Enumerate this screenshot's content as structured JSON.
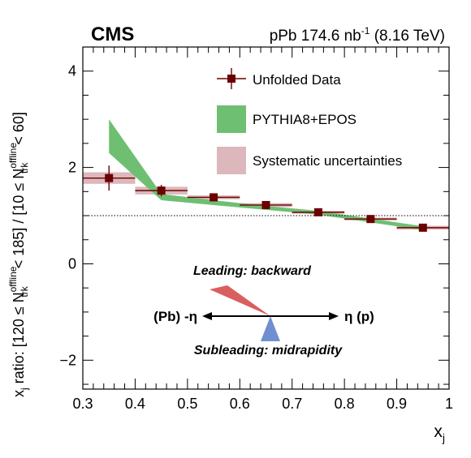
{
  "chart_data": {
    "type": "scatter",
    "experiment_label": "CMS",
    "lumi_text": "pPb 174.6 nb",
    "lumi_sup": "-1",
    "energy_text": "(8.16 TeV)",
    "xlabel_main": "x",
    "xlabel_sub": "j",
    "ylabel": {
      "p1": "x",
      "p1_sub": "j",
      "p2": " ratio: [120 ≤ N",
      "p3_sup": "offline",
      "p3_sub": "trk",
      "p4": " < 185] / [10 ≤ N",
      "p5_sup": "offline",
      "p5_sub": "trk",
      "p6": " < 60]"
    },
    "xlim": [
      0.3,
      1.0
    ],
    "ylim": [
      -2.6,
      4.5
    ],
    "x_ticks": [
      0.3,
      0.4,
      0.5,
      0.6,
      0.7,
      0.8,
      0.9,
      1.0
    ],
    "x_tick_labels": [
      "0.3",
      "0.4",
      "0.5",
      "0.6",
      "0.7",
      "0.8",
      "0.9",
      "1"
    ],
    "y_ticks": [
      -2,
      0,
      2,
      4
    ],
    "y_tick_labels": [
      "−2",
      "0",
      "2",
      "4"
    ],
    "reference_line": 1.0,
    "legend": {
      "placement": "top-right",
      "entries": [
        "Unfolded Data",
        "PYTHIA8+EPOS",
        "Systematic uncertainties"
      ]
    },
    "data_points": {
      "name": "Unfolded Data",
      "x": [
        0.35,
        0.45,
        0.55,
        0.65,
        0.75,
        0.85,
        0.95
      ],
      "y": [
        1.78,
        1.52,
        1.38,
        1.22,
        1.07,
        0.93,
        0.75
      ],
      "x_err": [
        0.05,
        0.05,
        0.05,
        0.05,
        0.05,
        0.05,
        0.05
      ],
      "y_err": [
        0.26,
        0.12,
        0.06,
        0.06,
        0.05,
        0.05,
        0.06
      ],
      "syst": [
        0.12,
        0.08,
        0.04,
        0.04,
        0.03,
        0.03,
        0.04
      ]
    },
    "model_band": {
      "name": "PYTHIA8+EPOS",
      "x": [
        0.35,
        0.45,
        0.55,
        0.65,
        0.75,
        0.85,
        0.95
      ],
      "low": [
        2.3,
        1.32,
        1.22,
        1.12,
        1.02,
        0.86,
        0.7
      ],
      "high": [
        3.0,
        1.45,
        1.32,
        1.2,
        1.1,
        0.94,
        0.78
      ]
    },
    "inset": {
      "leading_label": "Leading: backward",
      "subleading_label": "Subleading: midrapidity",
      "left_label": "(Pb) -η",
      "right_label": "η (p)"
    },
    "colors": {
      "data": "#6b0000",
      "model_band": "#6fbf73",
      "syst_band": "#dcb7bc",
      "leading": "#d95f5f",
      "subleading": "#6f8fd0"
    }
  }
}
